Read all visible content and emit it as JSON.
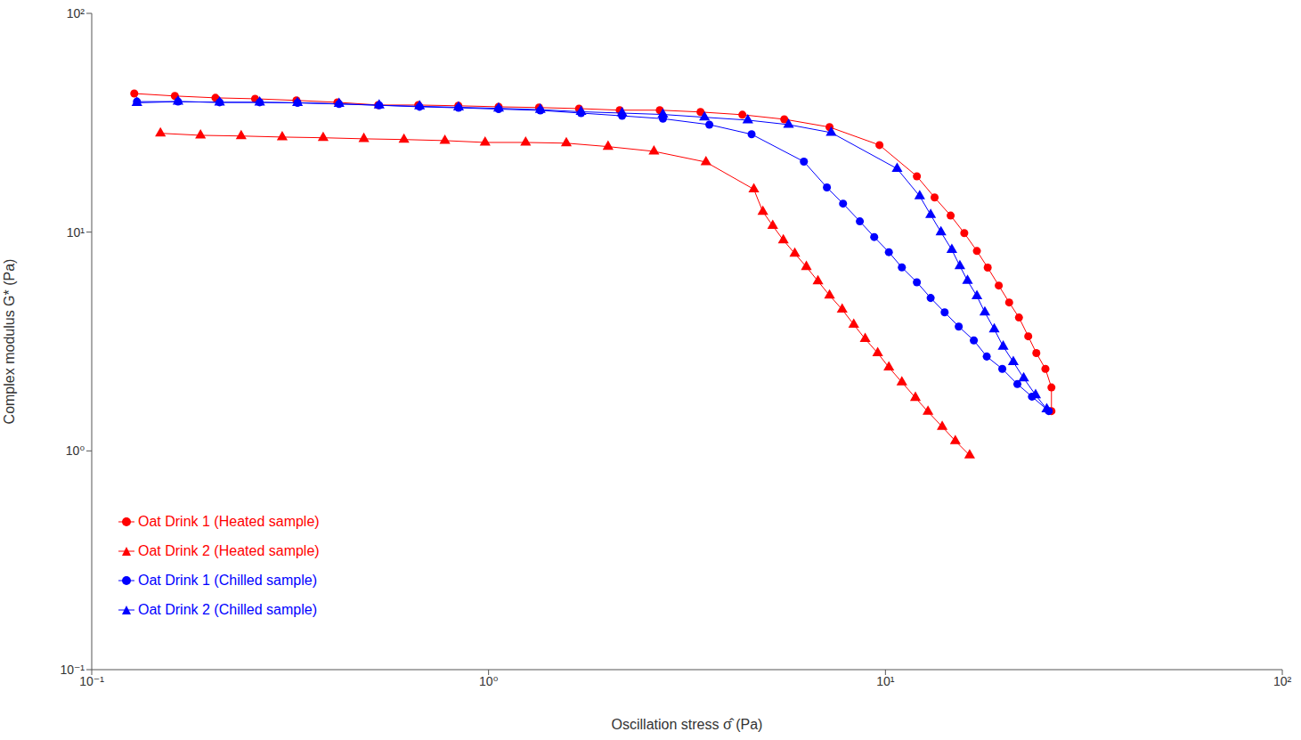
{
  "chart_data": {
    "type": "line",
    "x_label": "Oscillation stress σ̂ (Pa)",
    "y_label": "Complex modulus G* (Pa)",
    "log": true,
    "grid": false,
    "legend": "lower left",
    "xlim": [
      0.1,
      100
    ],
    "ylim": [
      0.1,
      100
    ],
    "xticks": [
      {
        "value": 0.1,
        "label": "10⁻¹"
      },
      {
        "value": 1,
        "label": "10⁰"
      },
      {
        "value": 10,
        "label": "10¹"
      },
      {
        "value": 100,
        "label": "10²"
      }
    ],
    "yticks": [
      {
        "value": 0.1,
        "label": "10⁻¹"
      },
      {
        "value": 1,
        "label": "10⁰"
      },
      {
        "value": 10,
        "label": "10¹"
      },
      {
        "value": 100,
        "label": "10²"
      }
    ],
    "series": [
      {
        "name": "Oat Drink 1 (Heated sample)",
        "color": "#ff0000",
        "marker": "circle",
        "x": [
          0.128,
          0.162,
          0.205,
          0.258,
          0.328,
          0.416,
          0.527,
          0.665,
          0.839,
          1.06,
          1.34,
          1.69,
          2.14,
          2.7,
          3.42,
          4.36,
          5.56,
          7.23,
          9.66,
          12.0,
          13.3,
          14.6,
          15.8,
          17.0,
          18.1,
          19.3,
          20.5,
          21.7,
          22.9,
          24.0,
          25.3,
          26.2,
          26.2
        ],
        "values": [
          43,
          41.9,
          41.1,
          40.7,
          40.0,
          39.2,
          38.1,
          38.1,
          37.8,
          37.4,
          37.1,
          36.7,
          36.1,
          36.1,
          35.4,
          34.4,
          32.8,
          30.2,
          25.0,
          18.0,
          14.4,
          11.9,
          9.9,
          8.2,
          6.88,
          5.7,
          4.77,
          4.07,
          3.34,
          2.8,
          2.37,
          1.95,
          1.52
        ]
      },
      {
        "name": "Oat Drink 2 (Heated sample)",
        "color": "#ff0000",
        "marker": "triangle",
        "x": [
          0.149,
          0.188,
          0.238,
          0.302,
          0.383,
          0.485,
          0.612,
          0.776,
          0.98,
          1.24,
          1.57,
          2.0,
          2.61,
          3.53,
          4.66,
          4.91,
          5.2,
          5.53,
          5.91,
          6.32,
          6.76,
          7.23,
          7.78,
          8.32,
          8.89,
          9.56,
          10.2,
          11.0,
          11.9,
          12.8,
          13.9,
          15.0,
          16.3
        ],
        "values": [
          28.3,
          27.7,
          27.5,
          27.2,
          27.0,
          26.7,
          26.5,
          26.2,
          25.7,
          25.7,
          25.5,
          24.6,
          23.4,
          20.9,
          15.7,
          12.4,
          10.7,
          9.19,
          7.98,
          6.94,
          5.97,
          5.14,
          4.43,
          3.78,
          3.25,
          2.8,
          2.41,
          2.06,
          1.75,
          1.51,
          1.29,
          1.11,
          0.955
        ]
      },
      {
        "name": "Oat Drink 1 (Chilled sample)",
        "color": "#0000ff",
        "marker": "circle",
        "x": [
          0.13,
          0.165,
          0.21,
          0.265,
          0.33,
          0.42,
          0.53,
          0.67,
          0.84,
          1.06,
          1.35,
          1.71,
          2.17,
          2.75,
          3.6,
          4.6,
          6.23,
          7.12,
          7.82,
          8.62,
          9.37,
          10.2,
          11.0,
          12.0,
          13.0,
          14.1,
          15.3,
          16.7,
          18.0,
          19.7,
          21.5,
          23.4,
          25.8
        ],
        "values": [
          39.5,
          39.5,
          39.2,
          39.2,
          39,
          38.5,
          38,
          37.4,
          37,
          36.5,
          36,
          35,
          34,
          33,
          31,
          28,
          21,
          16,
          13.5,
          11.2,
          9.5,
          8.1,
          6.9,
          5.9,
          5.0,
          4.3,
          3.7,
          3.2,
          2.7,
          2.37,
          2.02,
          1.77,
          1.52
        ]
      },
      {
        "name": "Oat Drink 2 (Chilled sample)",
        "color": "#0000ff",
        "marker": "triangle",
        "x": [
          0.13,
          0.165,
          0.21,
          0.265,
          0.33,
          0.42,
          0.53,
          0.67,
          0.84,
          1.06,
          1.35,
          1.71,
          2.17,
          2.75,
          3.5,
          4.5,
          5.7,
          7.3,
          10.7,
          12.2,
          13.0,
          13.8,
          14.7,
          15.4,
          16.1,
          17.0,
          17.8,
          18.8,
          19.8,
          21.0,
          22.3,
          23.9,
          25.5
        ],
        "values": [
          39,
          39.5,
          39.2,
          39.2,
          39,
          38.6,
          38,
          37.6,
          37.2,
          36.8,
          36.3,
          35.5,
          35,
          34.5,
          33.5,
          32.5,
          31,
          28.5,
          19.5,
          14.6,
          12.0,
          10.0,
          8.3,
          7.0,
          6.0,
          5.1,
          4.3,
          3.6,
          3.0,
          2.55,
          2.15,
          1.8,
          1.55
        ]
      }
    ]
  }
}
